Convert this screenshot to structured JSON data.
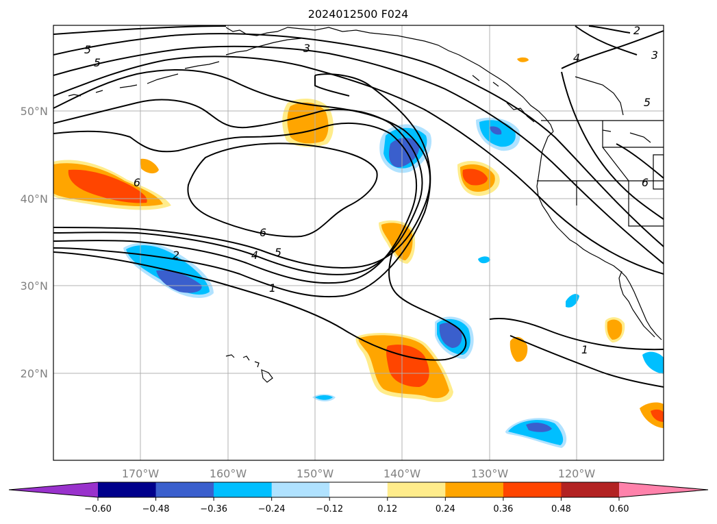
{
  "title": "2024012500 F024",
  "latitude_labels": [
    "50°N",
    "40°N",
    "30°N",
    "20°N"
  ],
  "longitude_labels": [
    "170°W",
    "160°W",
    "150°W",
    "140°W",
    "130°W",
    "120°W"
  ],
  "colorbar": {
    "tick_labels": [
      "−0.60",
      "−0.48",
      "−0.36",
      "−0.24",
      "−0.12",
      "0.12",
      "0.24",
      "0.36",
      "0.48",
      "0.60"
    ],
    "colors": [
      "#9932cc",
      "#00008b",
      "#3a5fcd",
      "#00bfff",
      "#b0e2ff",
      "#ffffff",
      "#ffec8b",
      "#ffa500",
      "#ff4500",
      "#b22222",
      "#ff82ab"
    ]
  },
  "contour_labels": [
    "5",
    "5",
    "3",
    "2",
    "3",
    "4",
    "5",
    "6",
    "6",
    "6",
    "5",
    "4",
    "2",
    "1",
    "1"
  ]
}
